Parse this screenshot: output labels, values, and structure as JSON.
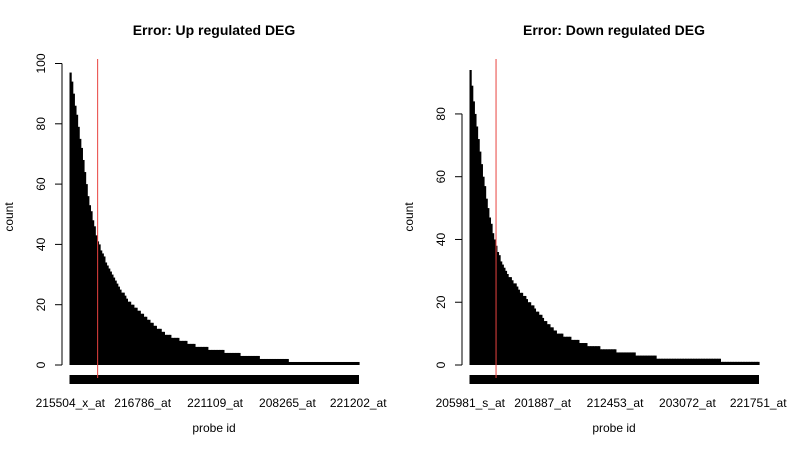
{
  "chart_data": [
    {
      "type": "bar",
      "title": "Error: Up regulated DEG",
      "xlabel": "probe id",
      "ylabel": "count",
      "ylim": [
        0,
        100
      ],
      "yticks": [
        0,
        20,
        40,
        60,
        80,
        100
      ],
      "x_tick_labels": [
        "215504_x_at",
        "216786_at",
        "221109_at",
        "208265_at",
        "221202_at"
      ],
      "n_bars": 180,
      "cutoff_bar_index": 17,
      "cutoff_color": "#e8423f",
      "bar_color": "#000000",
      "curve": [
        [
          0,
          97
        ],
        [
          2,
          90
        ],
        [
          5,
          79
        ],
        [
          8,
          68
        ],
        [
          11,
          56
        ],
        [
          14,
          48
        ],
        [
          17,
          41
        ],
        [
          20,
          37
        ],
        [
          23,
          33
        ],
        [
          26,
          30
        ],
        [
          30,
          26
        ],
        [
          35,
          22
        ],
        [
          40,
          19
        ],
        [
          45,
          17
        ],
        [
          50,
          14
        ],
        [
          55,
          12
        ],
        [
          60,
          10
        ],
        [
          65,
          9
        ],
        [
          70,
          8
        ],
        [
          75,
          7
        ],
        [
          80,
          6
        ],
        [
          90,
          5
        ],
        [
          100,
          4
        ],
        [
          110,
          3
        ],
        [
          125,
          2
        ],
        [
          145,
          1
        ],
        [
          179,
          1
        ]
      ]
    },
    {
      "type": "bar",
      "title": "Error: Down regulated DEG",
      "xlabel": "probe id",
      "ylabel": "count",
      "ylim": [
        0,
        94
      ],
      "yticks": [
        0,
        20,
        40,
        60,
        80
      ],
      "x_tick_labels": [
        "205981_s_at",
        "201887_at",
        "212453_at",
        "203072_at",
        "221751_at"
      ],
      "n_bars": 180,
      "cutoff_bar_index": 16,
      "cutoff_color": "#e8423f",
      "bar_color": "#000000",
      "curve": [
        [
          0,
          94
        ],
        [
          2,
          84
        ],
        [
          5,
          72
        ],
        [
          8,
          60
        ],
        [
          11,
          50
        ],
        [
          14,
          42
        ],
        [
          17,
          36
        ],
        [
          20,
          32
        ],
        [
          23,
          29
        ],
        [
          26,
          27
        ],
        [
          30,
          24
        ],
        [
          35,
          21
        ],
        [
          40,
          18
        ],
        [
          45,
          15
        ],
        [
          50,
          12
        ],
        [
          55,
          10
        ],
        [
          60,
          9
        ],
        [
          65,
          8
        ],
        [
          70,
          7
        ],
        [
          75,
          6
        ],
        [
          85,
          5
        ],
        [
          95,
          4
        ],
        [
          110,
          3
        ],
        [
          120,
          2
        ],
        [
          150,
          2
        ],
        [
          160,
          1
        ],
        [
          179,
          1
        ]
      ]
    }
  ]
}
